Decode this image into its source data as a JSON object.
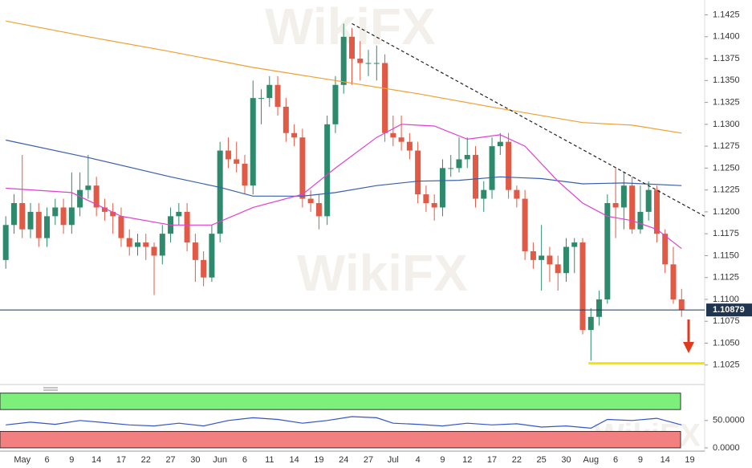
{
  "watermark": "WikiFX",
  "chart_data": [
    {
      "type": "candlestick",
      "xlim": [
        -0.7,
        84.8
      ],
      "ylim": [
        1.1011,
        1.1442
      ],
      "yticks": [
        1.1025,
        {
          "value": 1.105,
          "label": "1.1050"
        },
        1.1075,
        {
          "value": 1.11,
          "label": "1.1100"
        },
        1.1125,
        {
          "value": 1.115,
          "label": "1.1150"
        },
        1.1175,
        {
          "value": 1.12,
          "label": "1.1200"
        },
        1.1225,
        {
          "value": 1.125,
          "label": "1.1250"
        },
        1.1275,
        {
          "value": 1.13,
          "label": "1.1300"
        },
        1.1325,
        {
          "value": 1.135,
          "label": "1.1350"
        },
        1.1375,
        {
          "value": 1.14,
          "label": "1.1400"
        },
        1.1425
      ],
      "grid": false,
      "colors": {
        "up": "#2e8a6c",
        "down": "#e05a45"
      },
      "categories": [
        null,
        null,
        "May",
        null,
        null,
        "6",
        null,
        null,
        "9",
        null,
        null,
        "14",
        null,
        null,
        "17",
        null,
        null,
        "22",
        null,
        null,
        "27",
        null,
        null,
        "30",
        null,
        null,
        "Jun",
        null,
        null,
        "6",
        null,
        null,
        "11",
        null,
        null,
        "14",
        null,
        null,
        "19",
        null,
        null,
        "24",
        null,
        null,
        "27",
        null,
        null,
        "Jul",
        null,
        null,
        "4",
        null,
        null,
        "9",
        null,
        null,
        "12",
        null,
        null,
        "17",
        null,
        null,
        "22",
        null,
        null,
        "25",
        null,
        null,
        "30",
        null,
        null,
        "Aug",
        null,
        null,
        "6",
        null,
        null,
        "9",
        null,
        null,
        "14",
        null,
        null,
        "19"
      ],
      "open": [
        1.1145,
        1.1185,
        1.121,
        1.118,
        1.12,
        1.117,
        1.1195,
        1.1205,
        1.1185,
        1.1205,
        1.1225,
        1.123,
        1.1205,
        1.12,
        1.1195,
        1.117,
        1.116,
        1.1165,
        1.116,
        1.115,
        1.1175,
        1.1195,
        1.12,
        1.1165,
        1.1145,
        1.1125,
        1.1175,
        1.127,
        1.126,
        1.1255,
        1.123,
        1.133,
        1.133,
        1.1345,
        1.132,
        1.129,
        1.1285,
        1.1215,
        1.121,
        1.1195,
        1.13,
        1.1345,
        1.14,
        1.1375,
        1.137,
        1.137,
        1.137,
        1.129,
        1.1285,
        1.128,
        1.127,
        1.122,
        1.121,
        1.1205,
        1.125,
        1.125,
        1.126,
        1.1265,
        1.1215,
        1.1225,
        1.1275,
        1.128,
        1.1225,
        1.1215,
        1.1155,
        1.1145,
        1.115,
        1.114,
        1.113,
        1.116,
        1.1165,
        1.1065,
        1.108,
        1.11,
        1.121,
        1.1205,
        1.123,
        1.118,
        1.12,
        1.1225,
        1.1175,
        1.114,
        1.11,
        null
      ],
      "high": [
        1.1195,
        1.122,
        1.1265,
        1.121,
        1.121,
        1.1205,
        1.1215,
        1.1215,
        1.1245,
        1.1245,
        1.1265,
        1.124,
        1.1215,
        1.121,
        1.1205,
        1.118,
        1.1175,
        1.1175,
        1.1165,
        1.1185,
        1.1205,
        1.121,
        1.121,
        1.1175,
        1.1155,
        1.1185,
        1.128,
        1.1285,
        1.128,
        1.1265,
        1.135,
        1.134,
        1.1355,
        1.1355,
        1.133,
        1.13,
        1.1295,
        1.1225,
        1.122,
        1.131,
        1.1355,
        1.1415,
        1.141,
        1.1395,
        1.1385,
        1.139,
        1.138,
        1.131,
        1.131,
        1.129,
        1.128,
        1.123,
        1.122,
        1.126,
        1.1265,
        1.1285,
        1.1285,
        1.1275,
        1.1235,
        1.1285,
        1.129,
        1.129,
        1.123,
        1.1225,
        1.1165,
        1.1185,
        1.116,
        1.115,
        1.117,
        1.117,
        1.117,
        1.109,
        1.111,
        1.122,
        1.125,
        1.1245,
        1.124,
        1.123,
        1.1235,
        1.123,
        1.118,
        1.116,
        1.1112,
        null
      ],
      "low": [
        1.1135,
        1.1175,
        1.117,
        1.117,
        1.116,
        1.116,
        1.1185,
        1.1175,
        1.1175,
        1.1195,
        1.1215,
        1.1195,
        1.119,
        1.1175,
        1.116,
        1.115,
        1.115,
        1.1145,
        1.1105,
        1.114,
        1.1165,
        1.1185,
        1.1155,
        1.112,
        1.1115,
        1.112,
        1.1165,
        1.125,
        1.1245,
        1.122,
        1.122,
        1.13,
        1.132,
        1.131,
        1.128,
        1.1275,
        1.1205,
        1.12,
        1.118,
        1.1185,
        1.129,
        1.1335,
        1.1345,
        1.135,
        1.1355,
        1.135,
        1.128,
        1.1275,
        1.127,
        1.126,
        1.121,
        1.12,
        1.119,
        1.1195,
        1.124,
        1.1245,
        1.125,
        1.1205,
        1.12,
        1.1215,
        1.1265,
        1.1215,
        1.1205,
        1.1145,
        1.1135,
        1.111,
        1.112,
        1.111,
        1.112,
        1.113,
        1.106,
        1.103,
        1.107,
        1.1095,
        1.117,
        1.118,
        1.1175,
        1.1175,
        1.119,
        1.1165,
        1.113,
        1.1095,
        1.108,
        null
      ],
      "close": [
        1.1185,
        1.121,
        1.118,
        1.12,
        1.117,
        1.1195,
        1.1205,
        1.1185,
        1.1205,
        1.1225,
        1.123,
        1.1205,
        1.12,
        1.1195,
        1.117,
        1.116,
        1.1165,
        1.116,
        1.115,
        1.1175,
        1.1195,
        1.12,
        1.1165,
        1.1145,
        1.1125,
        1.1175,
        1.127,
        1.126,
        1.1255,
        1.123,
        1.133,
        1.133,
        1.1345,
        1.132,
        1.129,
        1.1285,
        1.1215,
        1.121,
        1.1195,
        1.13,
        1.1345,
        1.14,
        1.1375,
        1.137,
        1.137,
        1.137,
        1.129,
        1.1285,
        1.128,
        1.127,
        1.122,
        1.121,
        1.1205,
        1.125,
        1.125,
        1.126,
        1.1265,
        1.1215,
        1.1225,
        1.1275,
        1.128,
        1.1225,
        1.1215,
        1.1155,
        1.1145,
        1.115,
        1.114,
        1.113,
        1.116,
        1.1165,
        1.1065,
        1.108,
        1.11,
        1.121,
        1.1205,
        1.123,
        1.118,
        1.12,
        1.1225,
        1.1175,
        1.114,
        1.11,
        1.1088,
        null
      ],
      "series": [
        {
          "color": "#f0a030",
          "x": [
            0,
            10,
            20,
            30,
            40,
            50,
            60,
            70,
            76,
            82
          ],
          "values": [
            1.1418,
            1.14,
            1.1383,
            1.1365,
            1.135,
            1.1335,
            1.1318,
            1.1302,
            1.1299,
            1.129
          ]
        },
        {
          "color": "#3a5fb0",
          "x": [
            0,
            10,
            20,
            26,
            30,
            36,
            40,
            45,
            50,
            55,
            60,
            65,
            70,
            75,
            82
          ],
          "values": [
            1.1282,
            1.1262,
            1.124,
            1.1228,
            1.1218,
            1.1218,
            1.1222,
            1.123,
            1.1235,
            1.1236,
            1.124,
            1.1238,
            1.1232,
            1.1233,
            1.123
          ]
        },
        {
          "color": "#e040d0",
          "x": [
            0,
            8,
            14,
            20,
            25,
            30,
            36,
            40,
            45,
            48,
            52,
            56,
            60,
            63,
            67,
            70,
            73,
            76,
            79,
            82
          ],
          "values": [
            1.1227,
            1.1222,
            1.1195,
            1.1185,
            1.1185,
            1.1205,
            1.122,
            1.125,
            1.1285,
            1.13,
            1.1298,
            1.1283,
            1.1288,
            1.1275,
            1.1235,
            1.121,
            1.1195,
            1.119,
            1.118,
            1.1158
          ]
        },
        {
          "color": "#222222",
          "dash": true,
          "x": [
            42,
            84.8
          ],
          "values": [
            1.1415,
            1.1195
          ]
        },
        {
          "color": "#f2e600",
          "width": 3,
          "x": [
            70.7,
            84.8
          ],
          "values": [
            1.1027,
            1.1027
          ]
        }
      ],
      "last_price": {
        "value": 1.10879,
        "color": "#1f3550"
      }
    },
    {
      "type": "line",
      "xlim": [
        -0.7,
        84.8
      ],
      "ylim": [
        -6,
        104
      ],
      "yticks": [
        {
          "value": 50,
          "label": "50.0000"
        },
        {
          "value": 0,
          "label": "0.0000"
        }
      ],
      "bands": [
        {
          "from": 70,
          "to": 100,
          "color": "#7cf07a"
        },
        {
          "from": 0,
          "to": 30,
          "color": "#f28080"
        }
      ],
      "series": [
        {
          "color": "#3355cc",
          "x": [
            0,
            3,
            6,
            9,
            12,
            15,
            18,
            21,
            24,
            27,
            30,
            33,
            36,
            39,
            42,
            45,
            47,
            50,
            53,
            56,
            59,
            62,
            65,
            68,
            71,
            73,
            76,
            79,
            82
          ],
          "values": [
            42,
            47,
            43,
            50,
            46,
            42,
            40,
            45,
            40,
            50,
            55,
            52,
            45,
            50,
            57,
            55,
            45,
            43,
            40,
            45,
            42,
            44,
            38,
            40,
            36,
            52,
            50,
            54,
            42
          ]
        }
      ]
    }
  ]
}
